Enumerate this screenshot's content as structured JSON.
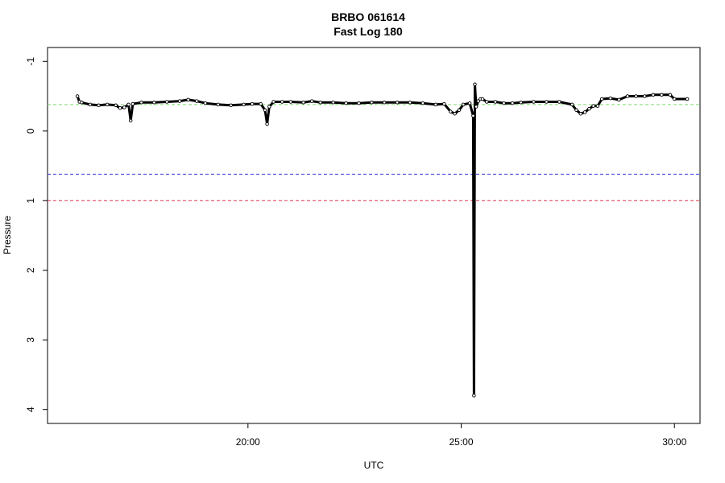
{
  "chart_data": {
    "type": "line",
    "title": "BRBO 061614",
    "subtitle": "Fast Log 180",
    "xlabel": "UTC",
    "ylabel": "Pressure",
    "x_unit": "minutes:seconds",
    "x_ticks": [
      {
        "value": 20,
        "label": "20:00"
      },
      {
        "value": 25,
        "label": "25:00"
      },
      {
        "value": 30,
        "label": "30:00"
      }
    ],
    "y_ticks": [
      {
        "value": -1,
        "label": "-1"
      },
      {
        "value": 0,
        "label": "0"
      },
      {
        "value": 1,
        "label": "1"
      },
      {
        "value": 2,
        "label": "2"
      },
      {
        "value": 3,
        "label": "3"
      },
      {
        "value": 4,
        "label": "4"
      }
    ],
    "xlim": [
      15.3,
      30.6
    ],
    "ylim": [
      4.2,
      -1.2
    ],
    "y_reversed": true,
    "grid": false,
    "reference_lines": [
      {
        "value": -0.38,
        "color": "#7fdc6f",
        "style": "dashed"
      },
      {
        "value": 0.62,
        "color": "#3b3bd6",
        "style": "dashed"
      },
      {
        "value": 1.0,
        "color": "#e0344f",
        "style": "dashed"
      }
    ],
    "series": [
      {
        "color": "#000000",
        "marker": "open-circle",
        "x": [
          16.0,
          16.05,
          16.1,
          16.3,
          16.5,
          16.7,
          16.9,
          17.0,
          17.1,
          17.2,
          17.25,
          17.3,
          17.5,
          17.8,
          18.1,
          18.4,
          18.6,
          18.8,
          19.0,
          19.3,
          19.6,
          19.9,
          20.1,
          20.3,
          20.4,
          20.45,
          20.5,
          20.6,
          20.8,
          21.0,
          21.3,
          21.5,
          21.7,
          22.0,
          22.3,
          22.6,
          22.9,
          23.2,
          23.5,
          23.8,
          24.1,
          24.4,
          24.6,
          24.75,
          24.85,
          24.95,
          25.05,
          25.2,
          25.28,
          25.3,
          25.32,
          25.35,
          25.4,
          25.45,
          25.5,
          25.6,
          25.8,
          26.0,
          26.2,
          26.4,
          26.7,
          27.0,
          27.3,
          27.6,
          27.7,
          27.8,
          27.9,
          28.0,
          28.1,
          28.2,
          28.3,
          28.5,
          28.7,
          28.9,
          29.1,
          29.3,
          29.5,
          29.7,
          29.9,
          30.0,
          30.3
        ],
        "y": [
          -0.5,
          -0.42,
          -0.41,
          -0.38,
          -0.37,
          -0.38,
          -0.37,
          -0.33,
          -0.34,
          -0.38,
          -0.15,
          -0.39,
          -0.41,
          -0.41,
          -0.42,
          -0.43,
          -0.45,
          -0.43,
          -0.4,
          -0.38,
          -0.37,
          -0.38,
          -0.39,
          -0.39,
          -0.3,
          -0.1,
          -0.35,
          -0.42,
          -0.42,
          -0.42,
          -0.41,
          -0.43,
          -0.41,
          -0.41,
          -0.4,
          -0.4,
          -0.41,
          -0.41,
          -0.41,
          -0.41,
          -0.4,
          -0.38,
          -0.39,
          -0.28,
          -0.25,
          -0.3,
          -0.38,
          -0.4,
          -0.22,
          3.8,
          -0.67,
          -0.35,
          -0.43,
          -0.46,
          -0.46,
          -0.42,
          -0.42,
          -0.4,
          -0.4,
          -0.41,
          -0.42,
          -0.42,
          -0.42,
          -0.38,
          -0.3,
          -0.25,
          -0.27,
          -0.32,
          -0.36,
          -0.36,
          -0.46,
          -0.47,
          -0.45,
          -0.5,
          -0.5,
          -0.5,
          -0.52,
          -0.52,
          -0.52,
          -0.46,
          -0.46
        ]
      }
    ]
  }
}
